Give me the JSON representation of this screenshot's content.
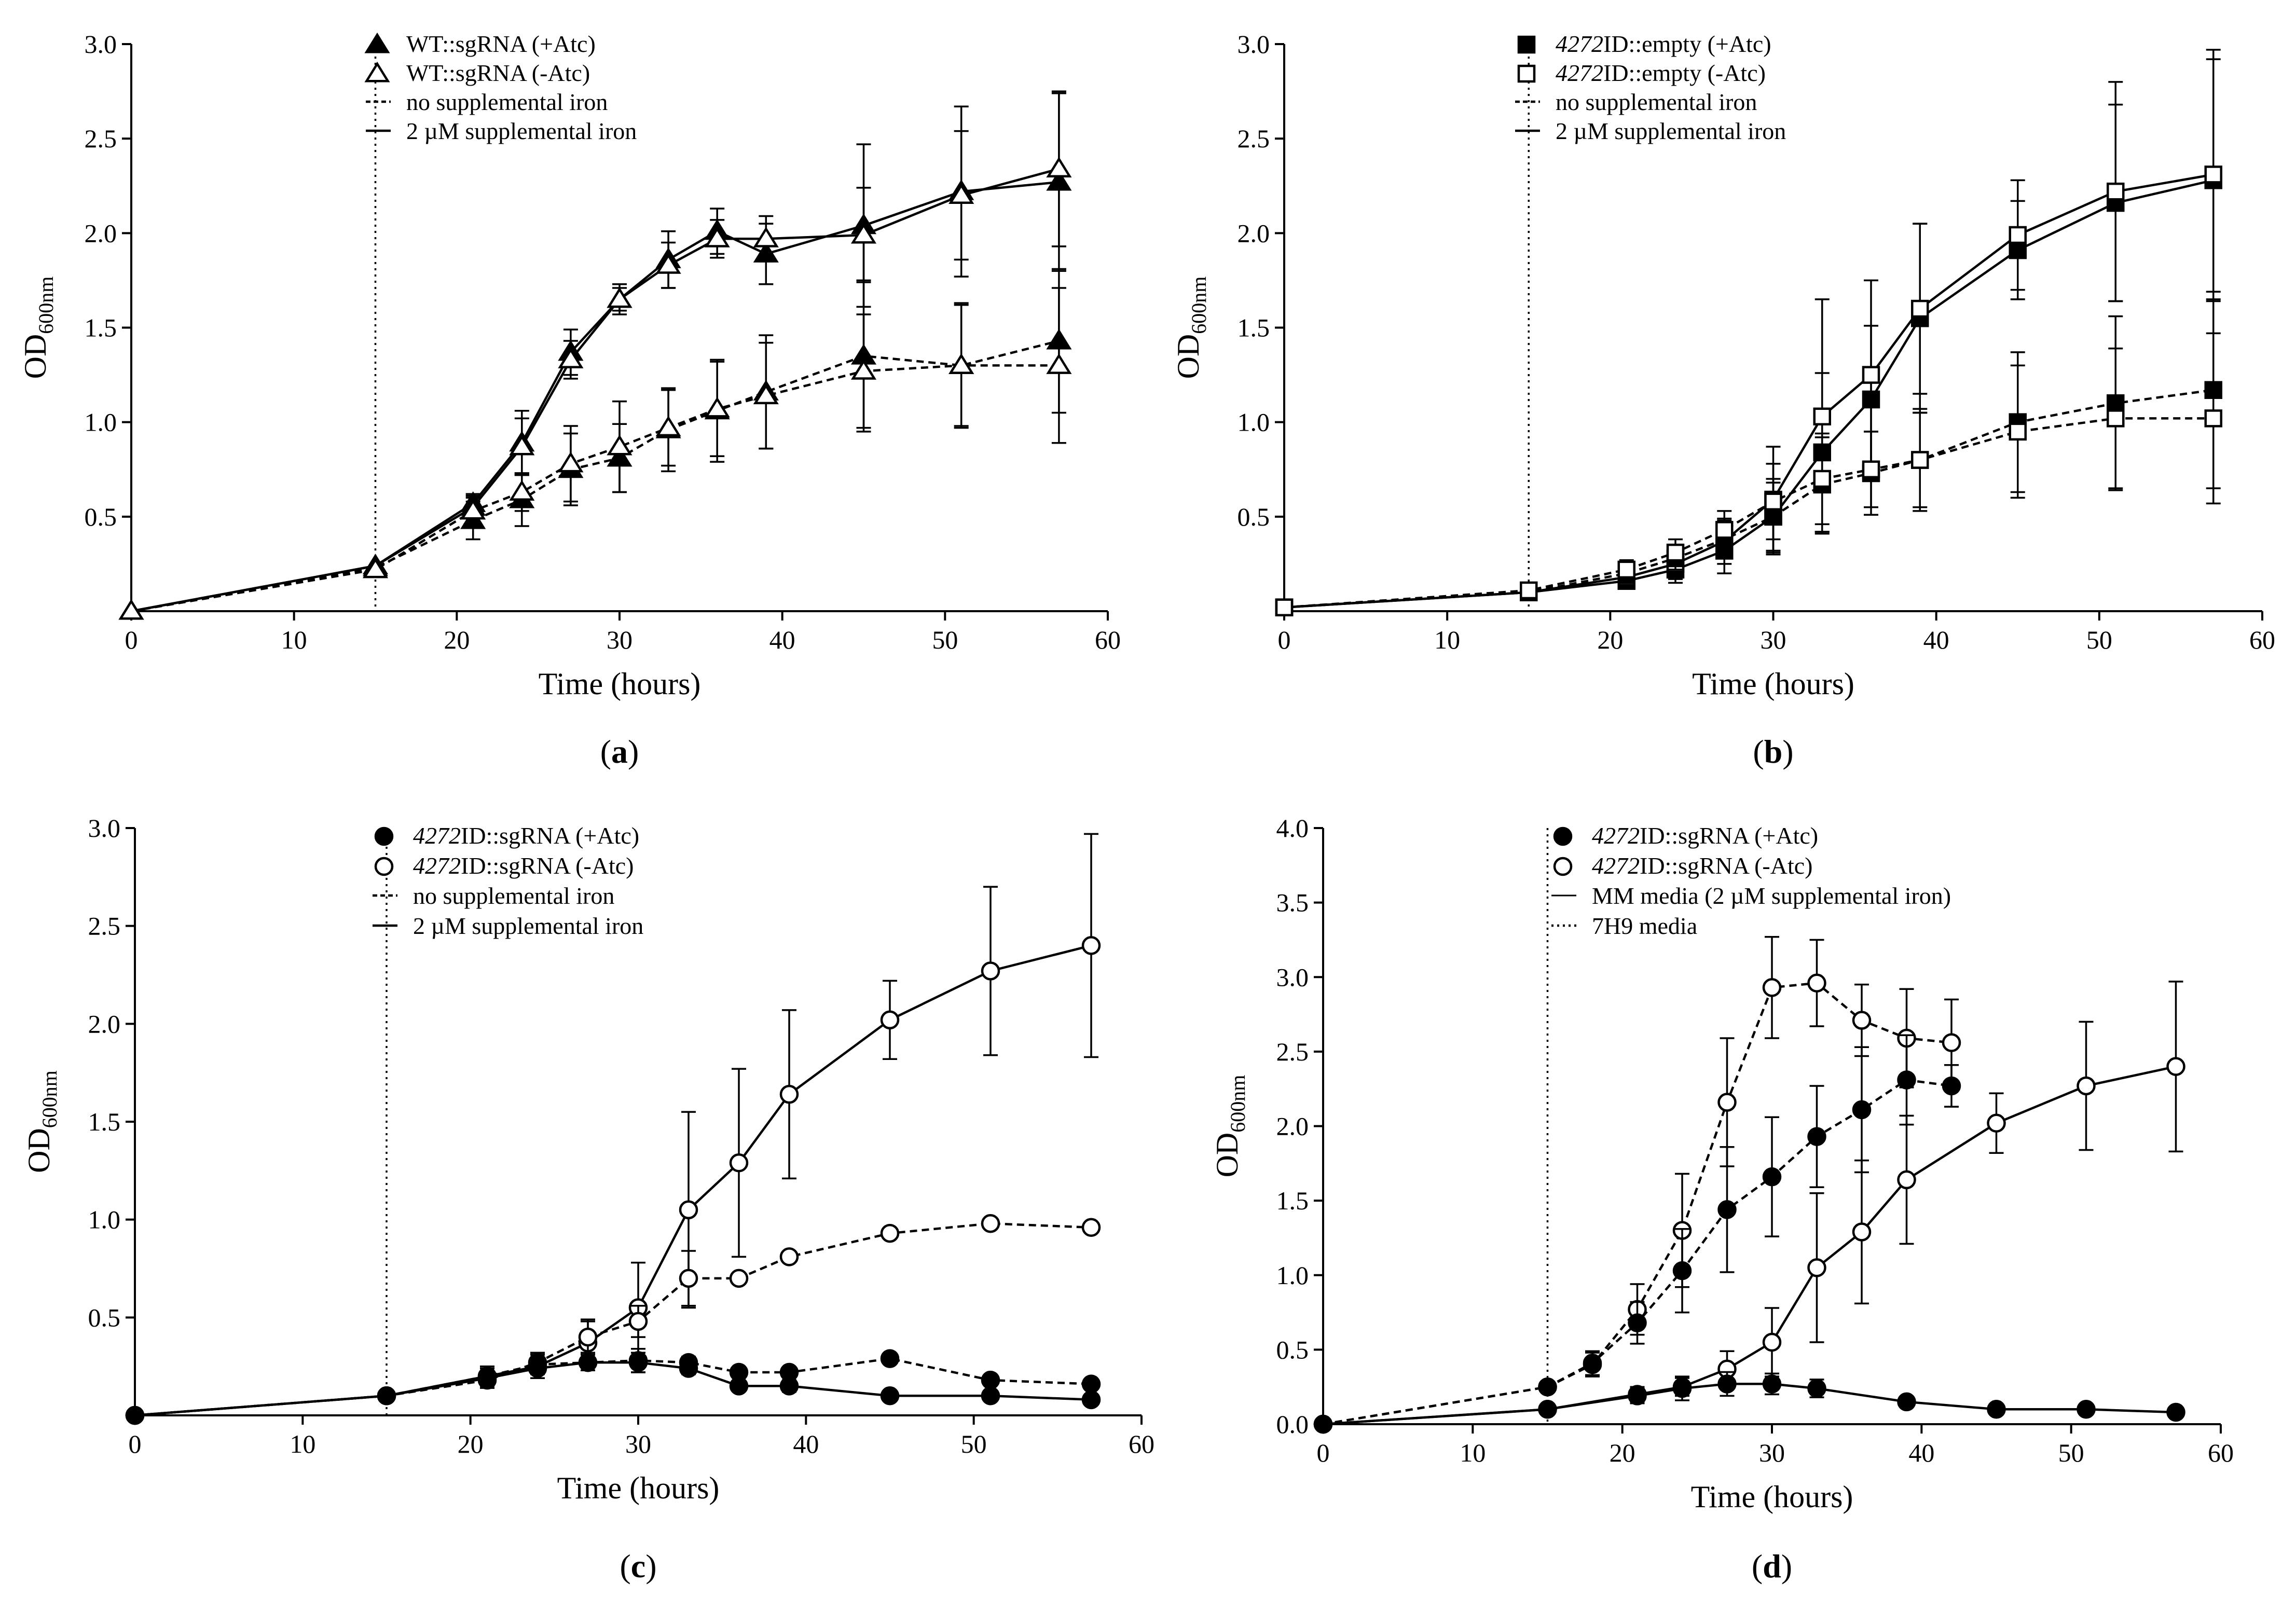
{
  "chart_data": [
    {
      "type": "line",
      "caption": "a",
      "xlabel": "Time (hours)",
      "ylabel": "OD",
      "ylabel_sub": "600nm",
      "xlim": [
        0,
        60
      ],
      "ylim": [
        0,
        3.0
      ],
      "xticks": [
        "0",
        "10",
        "20",
        "30",
        "40",
        "50",
        "60"
      ],
      "yticks": [
        "0.5",
        "1.0",
        "1.5",
        "2.0",
        "2.5",
        "3.0"
      ],
      "vline_x": 15,
      "legend": [
        {
          "label": "WT::sgRNA (+Atc)",
          "kind": "marker",
          "marker": "triangle-filled"
        },
        {
          "label": "WT::sgRNA (-Atc)",
          "kind": "marker",
          "marker": "triangle-open"
        },
        {
          "label": "no supplemental iron",
          "kind": "line",
          "dash": "dashed"
        },
        {
          "label": "2 µM supplemental iron",
          "kind": "line",
          "dash": "solid"
        }
      ],
      "series": [
        {
          "name": "WT::sgRNA (+Atc)",
          "condition": "2 µM supplemental iron",
          "marker": "triangle-filled",
          "dash": "solid",
          "x": [
            0,
            15,
            21,
            24,
            27,
            30,
            33,
            36,
            39,
            45,
            51,
            57
          ],
          "y": [
            0.0,
            0.24,
            0.57,
            0.89,
            1.37,
            1.65,
            1.86,
            2.01,
            1.89,
            2.04,
            2.22,
            2.27
          ],
          "err": [
            0,
            0,
            0.05,
            0.17,
            0.12,
            0.08,
            0.15,
            0.12,
            0.16,
            0.43,
            0.45,
            0.47
          ]
        },
        {
          "name": "WT::sgRNA (-Atc)",
          "condition": "2 µM supplemental iron",
          "marker": "triangle-open",
          "dash": "solid",
          "x": [
            0,
            15,
            21,
            24,
            27,
            30,
            33,
            36,
            39,
            45,
            51,
            57
          ],
          "y": [
            0.0,
            0.24,
            0.55,
            0.87,
            1.33,
            1.65,
            1.83,
            1.97,
            1.97,
            1.99,
            2.2,
            2.34
          ],
          "err": [
            0,
            0,
            0.05,
            0.15,
            0.1,
            0.06,
            0.12,
            0.1,
            0.12,
            0.25,
            0.34,
            0.41
          ]
        },
        {
          "name": "WT::sgRNA (+Atc)",
          "condition": "no supplemental iron",
          "marker": "triangle-filled",
          "dash": "dashed",
          "x": [
            0,
            15,
            21,
            24,
            27,
            30,
            33,
            36,
            39,
            45,
            51,
            57
          ],
          "y": [
            0.0,
            0.23,
            0.48,
            0.59,
            0.75,
            0.81,
            0.96,
            1.06,
            1.16,
            1.35,
            1.3,
            1.43
          ],
          "err": [
            0,
            0,
            0.1,
            0.14,
            0.19,
            0.18,
            0.22,
            0.27,
            0.3,
            0.4,
            0.33,
            0.38
          ]
        },
        {
          "name": "WT::sgRNA (-Atc)",
          "condition": "no supplemental iron",
          "marker": "triangle-open",
          "dash": "dashed",
          "x": [
            0,
            15,
            21,
            24,
            27,
            30,
            33,
            36,
            39,
            45,
            51,
            57
          ],
          "y": [
            0.0,
            0.22,
            0.53,
            0.63,
            0.78,
            0.87,
            0.97,
            1.07,
            1.14,
            1.27,
            1.3,
            1.3
          ],
          "err": [
            0,
            0,
            0.08,
            0.1,
            0.2,
            0.24,
            0.2,
            0.25,
            0.28,
            0.3,
            0.32,
            0.41
          ]
        }
      ]
    },
    {
      "type": "line",
      "caption": "b",
      "xlabel": "Time (hours)",
      "ylabel": "OD",
      "ylabel_sub": "600nm",
      "xlim": [
        0,
        60
      ],
      "ylim": [
        0,
        3.0
      ],
      "xticks": [
        "0",
        "10",
        "20",
        "30",
        "40",
        "50",
        "60"
      ],
      "yticks": [
        "0.5",
        "1.0",
        "1.5",
        "2.0",
        "2.5",
        "3.0"
      ],
      "vline_x": 15,
      "legend": [
        {
          "label_italic": "4272",
          "label": "ID::empty (+Atc)",
          "kind": "marker",
          "marker": "square-filled"
        },
        {
          "label_italic": "4272",
          "label": "ID::empty (-Atc)",
          "kind": "marker",
          "marker": "square-open"
        },
        {
          "label": "no supplemental iron",
          "kind": "line",
          "dash": "dashed"
        },
        {
          "label": "2 µM supplemental iron",
          "kind": "line",
          "dash": "solid"
        }
      ],
      "series": [
        {
          "name": "4272ID::empty (+Atc)",
          "condition": "2 µM supplemental iron",
          "marker": "square-filled",
          "dash": "solid",
          "x": [
            0,
            15,
            21,
            24,
            27,
            30,
            33,
            36,
            39,
            45,
            51,
            57
          ],
          "y": [
            0.02,
            0.1,
            0.16,
            0.22,
            0.32,
            0.5,
            0.84,
            1.12,
            1.55,
            1.91,
            2.16,
            2.28
          ],
          "err": [
            0,
            0.02,
            0.04,
            0.07,
            0.12,
            0.2,
            0.42,
            0.39,
            0.5,
            0.26,
            0.52,
            0.64
          ]
        },
        {
          "name": "4272ID::empty (-Atc)",
          "condition": "2 µM supplemental iron",
          "marker": "square-open",
          "dash": "solid",
          "x": [
            0,
            15,
            21,
            24,
            27,
            30,
            33,
            36,
            39,
            45,
            51,
            57
          ],
          "y": [
            0.02,
            0.1,
            0.18,
            0.25,
            0.37,
            0.59,
            1.03,
            1.25,
            1.6,
            1.99,
            2.22,
            2.31
          ],
          "err": [
            0,
            0.02,
            0.05,
            0.08,
            0.12,
            0.28,
            0.62,
            0.5,
            0.45,
            0.29,
            0.58,
            0.66
          ]
        },
        {
          "name": "4272ID::empty (+Atc)",
          "condition": "no supplemental iron",
          "marker": "square-filled",
          "dash": "dashed",
          "x": [
            0,
            15,
            21,
            24,
            27,
            30,
            33,
            36,
            39,
            45,
            51,
            57
          ],
          "y": [
            0.02,
            0.1,
            0.2,
            0.28,
            0.38,
            0.5,
            0.67,
            0.73,
            0.8,
            1.0,
            1.1,
            1.17
          ],
          "err": [
            0,
            0.02,
            0.05,
            0.06,
            0.1,
            0.18,
            0.25,
            0.22,
            0.27,
            0.37,
            0.46,
            0.52
          ]
        },
        {
          "name": "4272ID::empty (-Atc)",
          "condition": "no supplemental iron",
          "marker": "square-open",
          "dash": "dashed",
          "x": [
            0,
            15,
            21,
            24,
            27,
            30,
            33,
            36,
            39,
            45,
            51,
            57
          ],
          "y": [
            0.02,
            0.11,
            0.22,
            0.31,
            0.43,
            0.58,
            0.7,
            0.75,
            0.8,
            0.95,
            1.02,
            1.02
          ],
          "err": [
            0,
            0.02,
            0.05,
            0.07,
            0.1,
            0.2,
            0.24,
            0.2,
            0.25,
            0.35,
            0.37,
            0.45
          ]
        }
      ]
    },
    {
      "type": "line",
      "caption": "c",
      "xlabel": "Time (hours)",
      "ylabel": "OD",
      "ylabel_sub": "600nm",
      "xlim": [
        0,
        60
      ],
      "ylim": [
        0,
        3.0
      ],
      "xticks": [
        "0",
        "10",
        "20",
        "30",
        "40",
        "50",
        "60"
      ],
      "yticks": [
        "0.5",
        "1.0",
        "1.5",
        "2.0",
        "2.5",
        "3.0"
      ],
      "vline_x": 15,
      "legend": [
        {
          "label_italic": "4272",
          "label": "ID::sgRNA (+Atc)",
          "kind": "marker",
          "marker": "circle-filled"
        },
        {
          "label_italic": "4272",
          "label": "ID::sgRNA (-Atc)",
          "kind": "marker",
          "marker": "circle-open"
        },
        {
          "label": "no supplemental iron",
          "kind": "line",
          "dash": "dashed"
        },
        {
          "label": "2 µM supplemental iron",
          "kind": "line",
          "dash": "solid"
        }
      ],
      "series": [
        {
          "name": "4272ID::sgRNA (-Atc)",
          "condition": "2 µM supplemental iron",
          "marker": "circle-open",
          "dash": "solid",
          "x": [
            0,
            15,
            21,
            24,
            27,
            30,
            33,
            36,
            39,
            45,
            51,
            57
          ],
          "y": [
            0.0,
            0.1,
            0.2,
            0.25,
            0.37,
            0.55,
            1.05,
            1.29,
            1.64,
            2.02,
            2.27,
            2.4
          ],
          "err": [
            0,
            0,
            0.05,
            0.06,
            0.12,
            0.23,
            0.5,
            0.48,
            0.43,
            0.2,
            0.43,
            0.57
          ]
        },
        {
          "name": "4272ID::sgRNA (-Atc)",
          "condition": "no supplemental iron",
          "marker": "circle-open",
          "dash": "dashed",
          "x": [
            0,
            15,
            21,
            24,
            27,
            30,
            33,
            36,
            39,
            45,
            51,
            57
          ],
          "y": [
            0.0,
            0.1,
            0.18,
            0.27,
            0.4,
            0.48,
            0.7,
            0.7,
            0.81,
            0.93,
            0.98,
            0.96
          ],
          "err": [
            0,
            0,
            0.04,
            0.05,
            0.08,
            0.08,
            0.14,
            0,
            0,
            0,
            0,
            0
          ]
        },
        {
          "name": "4272ID::sgRNA (+Atc)",
          "condition": "2 µM supplemental iron",
          "marker": "circle-filled",
          "dash": "solid",
          "x": [
            0,
            15,
            21,
            24,
            27,
            30,
            33,
            36,
            39,
            45,
            51,
            57
          ],
          "y": [
            0.0,
            0.1,
            0.19,
            0.24,
            0.27,
            0.27,
            0.24,
            0.15,
            0.15,
            0.1,
            0.1,
            0.08
          ],
          "err": [
            0,
            0,
            0.05,
            0.05,
            0.04,
            0.05,
            0.03,
            0,
            0.03,
            0,
            0,
            0
          ]
        },
        {
          "name": "4272ID::sgRNA (+Atc)",
          "condition": "no supplemental iron",
          "marker": "circle-filled",
          "dash": "dashed",
          "x": [
            0,
            15,
            21,
            24,
            27,
            30,
            33,
            36,
            39,
            45,
            51,
            57
          ],
          "y": [
            0.0,
            0.1,
            0.2,
            0.26,
            0.27,
            0.28,
            0.27,
            0.22,
            0.22,
            0.29,
            0.18,
            0.16
          ],
          "err": [
            0,
            0,
            0.04,
            0.05,
            0.04,
            0.06,
            0.03,
            0,
            0,
            0,
            0,
            0
          ]
        }
      ]
    },
    {
      "type": "line",
      "caption": "d",
      "xlabel": "Time (hours)",
      "ylabel": "OD",
      "ylabel_sub": "600nm",
      "xlim": [
        0,
        60
      ],
      "ylim": [
        0,
        4.0
      ],
      "xticks": [
        "0",
        "10",
        "20",
        "30",
        "40",
        "50",
        "60"
      ],
      "yticks": [
        "0.0",
        "0.5",
        "1.0",
        "1.5",
        "2.0",
        "2.5",
        "3.0",
        "3.5",
        "4.0"
      ],
      "vline_x": 15,
      "legend": [
        {
          "label_italic": "4272",
          "label": "ID::sgRNA (+Atc)",
          "kind": "marker",
          "marker": "circle-filled"
        },
        {
          "label_italic": "4272",
          "label": "ID::sgRNA (-Atc)",
          "kind": "marker",
          "marker": "circle-open"
        },
        {
          "label": "MM media (2 µM supplemental iron)",
          "kind": "line",
          "dash": "solid-thin"
        },
        {
          "label": "7H9 media",
          "kind": "line",
          "dash": "dotted"
        }
      ],
      "series": [
        {
          "name": "4272ID::sgRNA (-Atc)",
          "condition": "7H9 media",
          "marker": "circle-open",
          "dash": "dashed",
          "x": [
            0,
            15,
            18,
            21,
            24,
            27,
            30,
            33,
            36,
            39,
            42
          ],
          "y": [
            0.0,
            0.25,
            0.4,
            0.77,
            1.3,
            2.16,
            2.93,
            2.96,
            2.71,
            2.59,
            2.56
          ],
          "err": [
            0,
            0,
            0.08,
            0.17,
            0.38,
            0.43,
            0.34,
            0.29,
            0.24,
            0.33,
            0.29
          ]
        },
        {
          "name": "4272ID::sgRNA (+Atc)",
          "condition": "7H9 media",
          "marker": "circle-filled",
          "dash": "dashed",
          "x": [
            0,
            15,
            18,
            21,
            24,
            27,
            30,
            33,
            36,
            39,
            42
          ],
          "y": [
            0.0,
            0.25,
            0.41,
            0.68,
            1.03,
            1.44,
            1.66,
            1.93,
            2.11,
            2.31,
            2.27
          ],
          "err": [
            0,
            0,
            0.08,
            0.14,
            0.28,
            0.42,
            0.4,
            0.34,
            0.42,
            0.3,
            0.14
          ]
        },
        {
          "name": "4272ID::sgRNA (-Atc)",
          "condition": "MM media (2 µM supplemental iron)",
          "marker": "circle-open",
          "dash": "solid",
          "x": [
            0,
            15,
            21,
            24,
            27,
            30,
            33,
            36,
            39,
            45,
            51,
            57
          ],
          "y": [
            0.0,
            0.1,
            0.2,
            0.25,
            0.37,
            0.55,
            1.05,
            1.29,
            1.64,
            2.02,
            2.27,
            2.4
          ],
          "err": [
            0,
            0,
            0.05,
            0.06,
            0.12,
            0.23,
            0.5,
            0.48,
            0.43,
            0.2,
            0.43,
            0.57
          ]
        },
        {
          "name": "4272ID::sgRNA (+Atc)",
          "condition": "MM media (2 µM supplemental iron)",
          "marker": "circle-filled",
          "dash": "solid",
          "x": [
            0,
            15,
            21,
            24,
            27,
            30,
            33,
            39,
            45,
            51,
            57
          ],
          "y": [
            0.0,
            0.1,
            0.19,
            0.24,
            0.27,
            0.27,
            0.24,
            0.15,
            0.1,
            0.1,
            0.08
          ],
          "err": [
            0,
            0,
            0.05,
            0.08,
            0.08,
            0.07,
            0.06,
            0,
            0,
            0,
            0
          ]
        }
      ]
    }
  ]
}
